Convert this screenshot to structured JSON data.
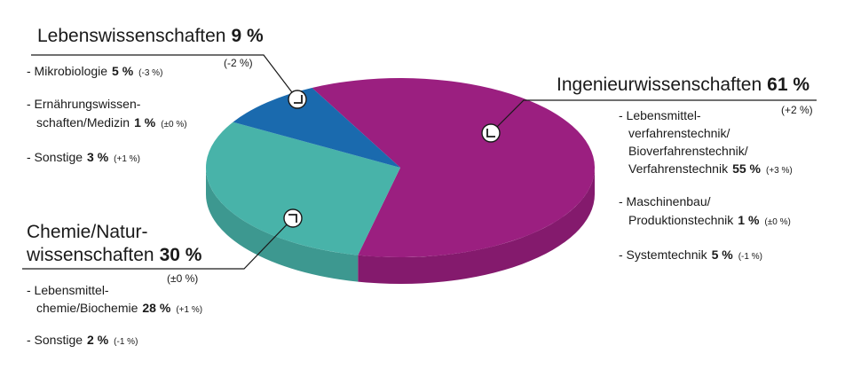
{
  "chart_data": {
    "type": "pie",
    "categories": [
      "Ingenieurwissenschaften",
      [
        "Chemie/Natur-",
        "wissenschaften"
      ],
      "Lebenswissenschaften"
    ],
    "values": [
      61,
      30,
      9
    ],
    "value_labels": [
      "61 %",
      "30 %",
      "9 %"
    ],
    "colors": [
      "#9b1f80",
      "#48b3a9",
      "#1a6aae"
    ],
    "changes": [
      "(+2 %)",
      "(±0 %)",
      "(-2 %)"
    ],
    "details": [
      [
        {
          "lines": [
            "- Lebensmittel-",
            "verfahrenstechnik/",
            "Bioverfahrenstechnik/",
            "Verfahrenstechnik"
          ],
          "value": "55 %",
          "change": "(+3 %)"
        },
        {
          "lines": [
            "- Maschinenbau/",
            "Produktionstechnik"
          ],
          "value": "1 %",
          "change": "(±0 %)"
        },
        {
          "lines": [
            "- Systemtechnik"
          ],
          "value": "5 %",
          "change": "(-1 %)"
        }
      ],
      [
        {
          "lines": [
            "- Lebensmittel-",
            "chemie/Biochemie"
          ],
          "value": "28 %",
          "change": "(+1 %)"
        },
        {
          "lines": [
            "- Sonstige"
          ],
          "value": "2 %",
          "change": "(-1 %)"
        }
      ],
      [
        {
          "lines": [
            "- Mikrobiologie"
          ],
          "value": "5 %",
          "change": "(-3 %)"
        },
        {
          "lines": [
            "- Ernährungswissen-",
            "schaften/Medizin"
          ],
          "value": "1 %",
          "change": "(±0 %)"
        },
        {
          "lines": [
            "- Sonstige"
          ],
          "value": "3 %",
          "change": "(+1 %)"
        }
      ]
    ]
  }
}
